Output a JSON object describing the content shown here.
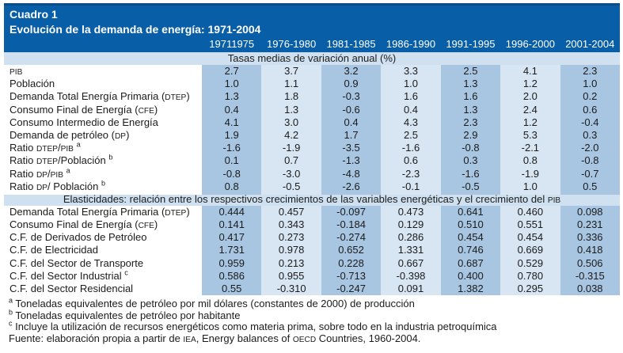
{
  "table": {
    "title": "Cuadro 1",
    "subtitle": "Evolución de la demanda de energía: 1971-2004",
    "columns": [
      "19711975",
      "1976-1980",
      "1981-1985",
      "1986-1990",
      "1991-1995",
      "1996-2000",
      "2001-2004"
    ],
    "colors": {
      "header_band": "#085fa8",
      "section_band": "#cfe1f0",
      "column_dark": "#a8c6e1",
      "column_light": "#d8e6f3",
      "header_text": "#ffffff",
      "body_text": "#1b1b1b"
    },
    "section1": {
      "header": "Tasas medias de variación anual (%)",
      "rows": [
        {
          "label": "PIB",
          "sup": "",
          "values": [
            "2.7",
            "3.7",
            "3.2",
            "3.3",
            "2.5",
            "4.1",
            "2.3"
          ]
        },
        {
          "label": "Población",
          "sup": "",
          "values": [
            "1.0",
            "1.1",
            "0.9",
            "1.0",
            "1.3",
            "1.2",
            "1.0"
          ]
        },
        {
          "label": "Demanda Total Energía Primaria (DTEP)",
          "sup": "",
          "values": [
            "1.3",
            "1.8",
            "-0.3",
            "1.6",
            "1.6",
            "2.0",
            "0.2"
          ]
        },
        {
          "label": "Consumo Final de Energía (CFE)",
          "sup": "",
          "values": [
            "0.4",
            "1.3",
            "-0.6",
            "0.4",
            "1.3",
            "2.4",
            "0.6"
          ]
        },
        {
          "label": "Consumo Intermedio de Energía",
          "sup": "",
          "values": [
            "4.1",
            "3.0",
            "0.4",
            "4.3",
            "2.3",
            "1.2",
            "-0.4"
          ]
        },
        {
          "label": "Demanda de petróleo (DP)",
          "sup": "",
          "values": [
            "1.9",
            "4.2",
            "1.7",
            "2.5",
            "2.9",
            "5.3",
            "0.3"
          ]
        },
        {
          "label": "Ratio DTEP/PIB",
          "sup": "a",
          "values": [
            "-1.6",
            "-1.9",
            "-3.5",
            "-1.6",
            "-0.8",
            "-2.1",
            "-2.0"
          ]
        },
        {
          "label": "Ratio DTEP/Población",
          "sup": "b",
          "values": [
            "0.1",
            "0.7",
            "-1.3",
            "0.6",
            "0.3",
            "0.8",
            "-0.8"
          ]
        },
        {
          "label": "Ratio DP/PIB",
          "sup": "a",
          "values": [
            "-0.8",
            "-3.0",
            "-4.8",
            "-2.3",
            "-1.6",
            "-1.9",
            "-0.7"
          ]
        },
        {
          "label": "Ratio DP/ Población",
          "sup": "b",
          "values": [
            "0.8",
            "-0.5",
            "-2.6",
            "-0.1",
            "-0.5",
            "1.0",
            "0.5"
          ]
        }
      ]
    },
    "section2": {
      "header": "Elasticidades: relación entre los respectivos crecimientos de las variables energéticas y el crecimiento del PIB",
      "rows": [
        {
          "label": "Demanda Total Energía Primaria (DTEP)",
          "sup": "",
          "values": [
            "0.444",
            "0.457",
            "-0.097",
            "0.473",
            "0.641",
            "0.460",
            "0.098"
          ]
        },
        {
          "label": "Consumo Final de Energía (CFE)",
          "sup": "",
          "values": [
            "0.141",
            "0.343",
            "-0.184",
            "0.129",
            "0.510",
            "0.551",
            "0.231"
          ]
        },
        {
          "label": "C.F. de Derivados de Petróleo",
          "sup": "",
          "values": [
            "0.417",
            "0.273",
            "-0.274",
            "0.286",
            "0.454",
            "0.454",
            "0.336"
          ]
        },
        {
          "label": "C.F. de Electricidad",
          "sup": "",
          "values": [
            "1.731",
            "0.978",
            "0.652",
            "1.331",
            "0.746",
            "0.669",
            "0.418"
          ]
        },
        {
          "label": "C.F. del Sector de Transporte",
          "sup": "",
          "values": [
            "0.959",
            "0.213",
            "0.228",
            "0.667",
            "0.687",
            "0.529",
            "0.506"
          ]
        },
        {
          "label": "C.F. del Sector Industrial",
          "sup": "c",
          "values": [
            "0.586",
            "0.955",
            "-0.713",
            "-0.398",
            "0.400",
            "0.780",
            "-0.315"
          ]
        },
        {
          "label": "C.F. del Sector Residencial",
          "sup": "",
          "values": [
            "0.55",
            "-0.310",
            "-0.247",
            "0.091",
            "1.382",
            "0.295",
            "0.038"
          ]
        }
      ]
    },
    "footnotes": [
      {
        "sup": "a",
        "text": "Toneladas equivalentes de petróleo por mil dólares (constantes de 2000) de producción"
      },
      {
        "sup": "b",
        "text": "Toneladas equivalentes de petróleo por habitante"
      },
      {
        "sup": "c",
        "text": "Incluye la utilización de recursos energéticos como materia prima, sobre todo en la industria petroquímica"
      },
      {
        "sup": "",
        "text": "Fuente: elaboración propia a partir de IEA, Energy balances of OECD Countries, 1960-2004."
      }
    ]
  }
}
